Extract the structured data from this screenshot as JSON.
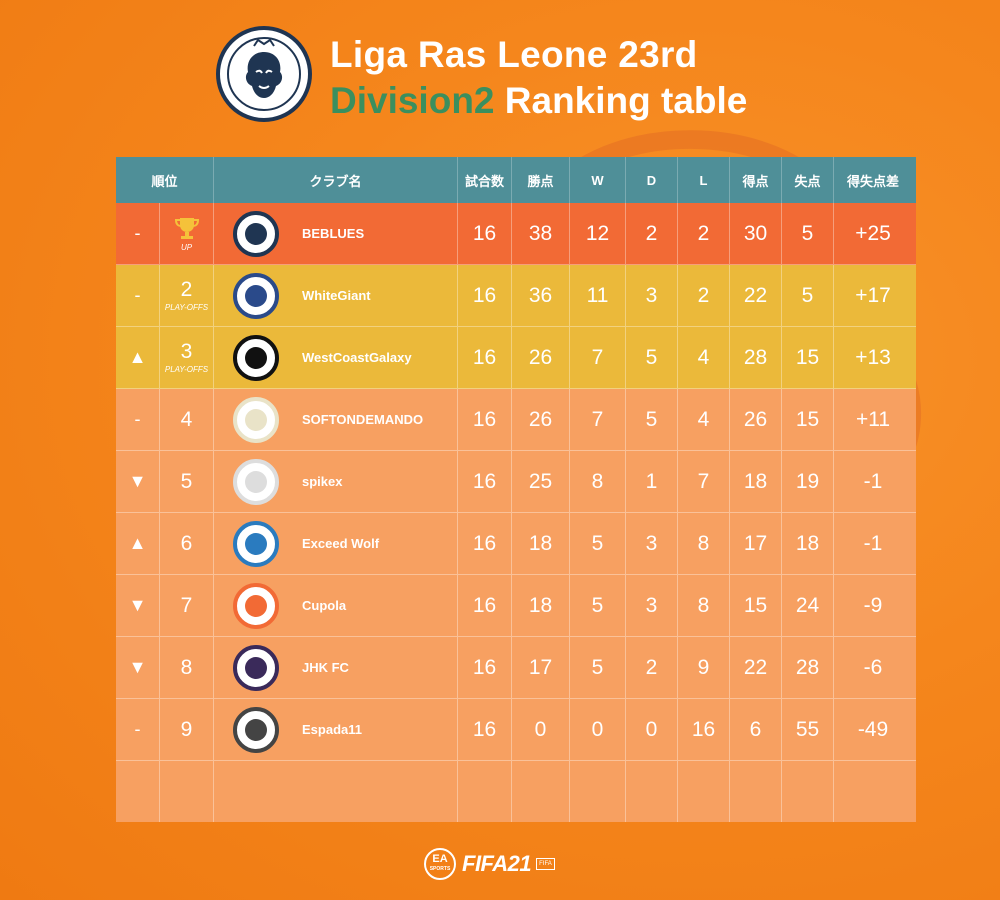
{
  "header": {
    "title_line1": "Liga Ras Leone 23rd",
    "title_division": "Division2",
    "title_rest": " Ranking table",
    "logo_text": "Liga Ras Leone"
  },
  "columns": [
    "順位",
    "クラブ名",
    "試合数",
    "勝点",
    "W",
    "D",
    "L",
    "得点",
    "失点",
    "得失点差"
  ],
  "rows": [
    {
      "move": "-",
      "pos": "",
      "pos_sub": "UP",
      "club": "BEBLUES",
      "played": "16",
      "pts": "38",
      "w": "12",
      "d": "2",
      "l": "2",
      "gf": "30",
      "ga": "5",
      "gd": "+25",
      "tier": "champ",
      "logo_icon": "beblues-crest-icon",
      "pos_icon": "trophy-icon"
    },
    {
      "move": "-",
      "pos": "2",
      "pos_sub": "PLAY-OFFS",
      "club": "WhiteGiant",
      "played": "16",
      "pts": "36",
      "w": "11",
      "d": "3",
      "l": "2",
      "gf": "22",
      "ga": "5",
      "gd": "+17",
      "tier": "po",
      "logo_icon": "whitegiant-crest-icon"
    },
    {
      "move": "▲",
      "pos": "3",
      "pos_sub": "PLAY-OFFS",
      "club": "WestCoastGalaxy",
      "played": "16",
      "pts": "26",
      "w": "7",
      "d": "5",
      "l": "4",
      "gf": "28",
      "ga": "15",
      "gd": "+13",
      "tier": "po",
      "logo_icon": "galaxy-skull-crest-icon"
    },
    {
      "move": "-",
      "pos": "4",
      "pos_sub": "",
      "club": "SOFTONDEMANDO",
      "played": "16",
      "pts": "26",
      "w": "7",
      "d": "5",
      "l": "4",
      "gf": "26",
      "ga": "15",
      "gd": "+11",
      "tier": "norm",
      "logo_icon": "softondemando-crest-icon"
    },
    {
      "move": "▼",
      "pos": "5",
      "pos_sub": "",
      "club": "spikex",
      "played": "16",
      "pts": "25",
      "w": "8",
      "d": "1",
      "l": "7",
      "gf": "18",
      "ga": "19",
      "gd": "-1",
      "tier": "norm",
      "logo_icon": "spikex-crest-icon"
    },
    {
      "move": "▲",
      "pos": "6",
      "pos_sub": "",
      "club": "Exceed Wolf",
      "played": "16",
      "pts": "18",
      "w": "5",
      "d": "3",
      "l": "8",
      "gf": "17",
      "ga": "18",
      "gd": "-1",
      "tier": "norm",
      "logo_icon": "exceedwolf-crest-icon"
    },
    {
      "move": "▼",
      "pos": "7",
      "pos_sub": "",
      "club": "Cupola",
      "played": "16",
      "pts": "18",
      "w": "5",
      "d": "3",
      "l": "8",
      "gf": "15",
      "ga": "24",
      "gd": "-9",
      "tier": "norm",
      "logo_icon": "cupola-crest-icon"
    },
    {
      "move": "▼",
      "pos": "8",
      "pos_sub": "",
      "club": "JHK FC",
      "played": "16",
      "pts": "17",
      "w": "5",
      "d": "2",
      "l": "9",
      "gf": "22",
      "ga": "28",
      "gd": "-6",
      "tier": "norm",
      "logo_icon": "jhkfc-crest-icon"
    },
    {
      "move": "-",
      "pos": "9",
      "pos_sub": "",
      "club": "Espada11",
      "played": "16",
      "pts": "0",
      "w": "0",
      "d": "0",
      "l": "16",
      "gf": "6",
      "ga": "55",
      "gd": "-49",
      "tier": "norm",
      "logo_icon": "espada-bear-crest-icon"
    }
  ],
  "footer": {
    "ea_line1": "EA",
    "ea_line2": "SPORTS",
    "game": "FIFA21",
    "badge": "FIFA"
  },
  "colors": {
    "background": "#f5861c",
    "header_row": "#4f8f98",
    "champion_row": "#f26a35",
    "playoff_row": "#ebb93a",
    "normal_row": "#f7a061",
    "division_text": "#3b8f5e"
  }
}
